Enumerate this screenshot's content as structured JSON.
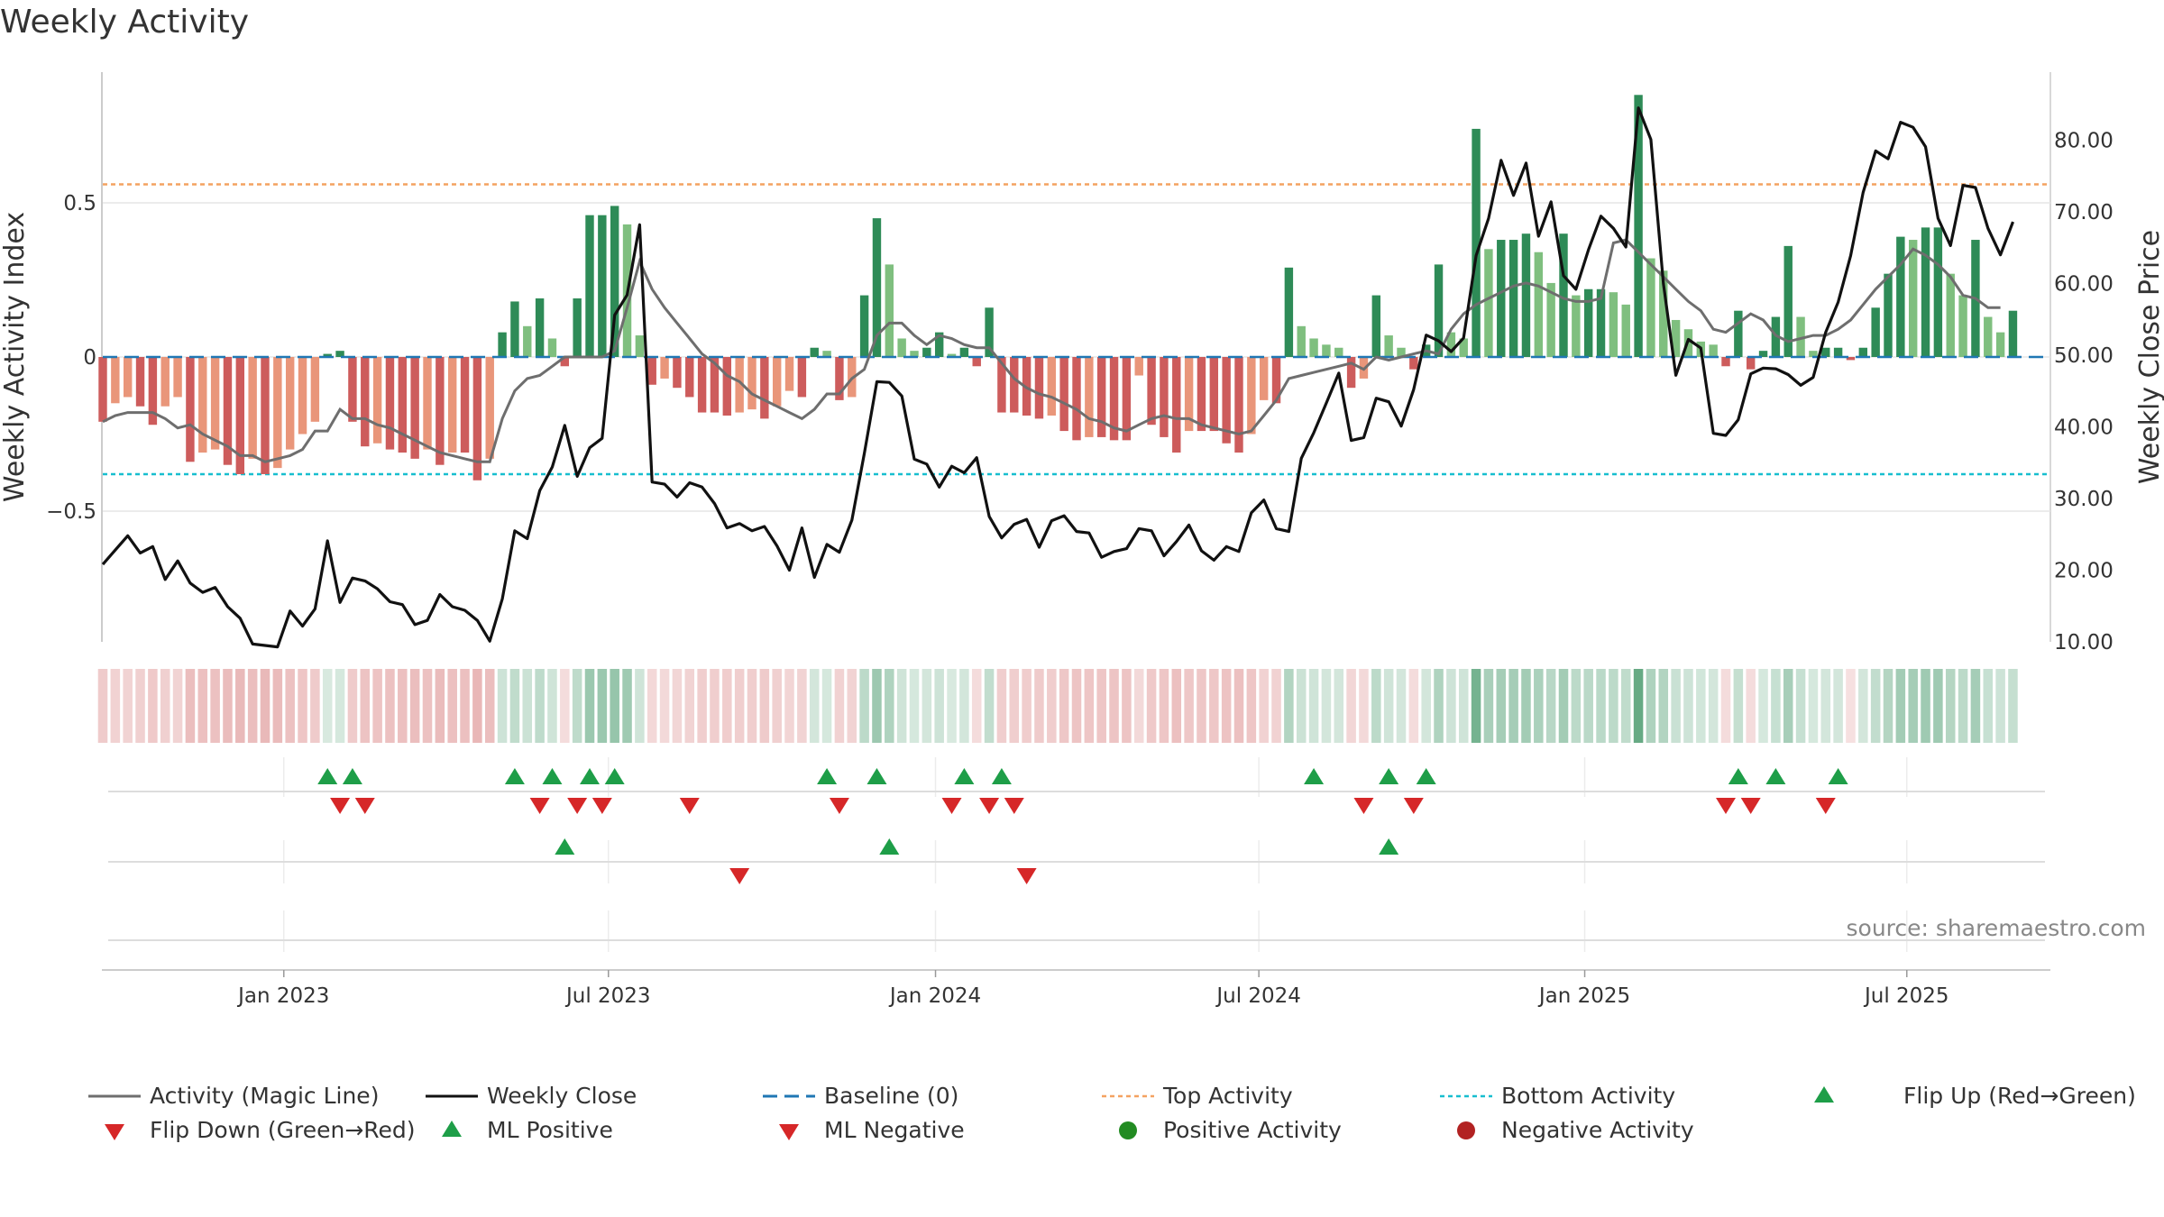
{
  "title": "Weekly Activity",
  "source": "source: sharemaestro.com",
  "colors": {
    "pos_strong": "#2e8b57",
    "pos_light": "#7fbf7f",
    "neg_strong": "#cd5c5c",
    "neg_light": "#e9967a",
    "magic_line": "#6e6e6e",
    "close_line": "#111111",
    "baseline": "#1f77b4",
    "top_line": "#f4a261",
    "bottom_line": "#17becf",
    "flip_up": "#1e9e48",
    "flip_down": "#d62728",
    "grid": "#e6e6e6"
  },
  "chart_data": {
    "type": "bar+line",
    "title": "Weekly Activity",
    "ylabel_left": "Weekly Activity Index",
    "ylabel_right": "Weekly Close Price",
    "left_axis": {
      "ylim": [
        -0.93,
        0.93
      ],
      "ticks": [
        0.5,
        0,
        -0.5
      ],
      "tick_labels": [
        "0.5",
        "0",
        "−0.5"
      ]
    },
    "right_axis": {
      "ylim": [
        7.5,
        87.5
      ],
      "ticks": [
        80,
        70,
        60,
        50,
        40,
        30,
        20,
        10
      ],
      "tick_labels": [
        "80.00",
        "70.00",
        "60.00",
        "50.00",
        "40.00",
        "30.00",
        "20.00",
        "10.00"
      ]
    },
    "x_range_weeks": [
      0,
      156
    ],
    "x_ticks": [
      {
        "label": "Jan 2023",
        "week": 14.5
      },
      {
        "label": "Jul 2023",
        "week": 40.5
      },
      {
        "label": "Jan 2024",
        "week": 66.7
      },
      {
        "label": "Jul 2024",
        "week": 92.6
      },
      {
        "label": "Jan 2025",
        "week": 118.7
      },
      {
        "label": "Jul 2025",
        "week": 144.5
      }
    ],
    "top_activity": 0.56,
    "bottom_activity": -0.38,
    "activity": [
      -0.21,
      -0.15,
      -0.13,
      -0.16,
      -0.22,
      -0.16,
      -0.13,
      -0.34,
      -0.31,
      -0.3,
      -0.35,
      -0.38,
      -0.33,
      -0.38,
      -0.36,
      -0.3,
      -0.25,
      -0.21,
      0.01,
      0.02,
      -0.21,
      -0.29,
      -0.28,
      -0.3,
      -0.31,
      -0.33,
      -0.3,
      -0.35,
      -0.31,
      -0.31,
      -0.4,
      -0.33,
      0.08,
      0.18,
      0.1,
      0.19,
      0.06,
      -0.03,
      0.19,
      0.46,
      0.46,
      0.49,
      0.43,
      0.07,
      -0.09,
      -0.07,
      -0.1,
      -0.13,
      -0.18,
      -0.18,
      -0.19,
      -0.18,
      -0.17,
      -0.2,
      -0.16,
      -0.11,
      -0.13,
      0.03,
      0.02,
      -0.14,
      -0.13,
      0.2,
      0.45,
      0.3,
      0.06,
      0.02,
      0.03,
      0.08,
      0.01,
      0.03,
      -0.03,
      0.16,
      -0.18,
      -0.18,
      -0.19,
      -0.2,
      -0.19,
      -0.24,
      -0.27,
      -0.26,
      -0.26,
      -0.27,
      -0.27,
      -0.06,
      -0.22,
      -0.26,
      -0.31,
      -0.24,
      -0.24,
      -0.24,
      -0.28,
      -0.31,
      -0.25,
      -0.14,
      -0.15,
      0.29,
      0.1,
      0.06,
      0.04,
      0.03,
      -0.1,
      -0.07,
      0.2,
      0.07,
      0.03,
      -0.04,
      0.04,
      0.3,
      0.08,
      0.06,
      0.74,
      0.35,
      0.38,
      0.38,
      0.4,
      0.34,
      0.24,
      0.4,
      0.2,
      0.22,
      0.22,
      0.21,
      0.17,
      0.85,
      0.32,
      0.28,
      0.12,
      0.09,
      0.05,
      0.04,
      -0.03,
      0.15,
      -0.04,
      0.02,
      0.13,
      0.36,
      0.13,
      0.02,
      0.03,
      0.03,
      -0.01,
      0.03,
      0.16,
      0.27,
      0.39,
      0.38,
      0.42,
      0.42,
      0.27,
      0.2,
      0.38,
      0.13,
      0.08,
      0.15
    ],
    "magic_line": [
      -0.21,
      -0.19,
      -0.18,
      -0.18,
      -0.18,
      -0.2,
      -0.23,
      -0.22,
      -0.25,
      -0.27,
      -0.29,
      -0.32,
      -0.32,
      -0.34,
      -0.33,
      -0.32,
      -0.3,
      -0.24,
      -0.24,
      -0.17,
      -0.2,
      -0.2,
      -0.22,
      -0.23,
      -0.25,
      -0.27,
      -0.29,
      -0.31,
      -0.32,
      -0.33,
      -0.34,
      -0.34,
      -0.2,
      -0.11,
      -0.07,
      -0.06,
      -0.03,
      0.0,
      0.0,
      0.0,
      0.0,
      0.02,
      0.16,
      0.31,
      0.22,
      0.16,
      0.11,
      0.06,
      0.01,
      -0.02,
      -0.06,
      -0.08,
      -0.12,
      -0.14,
      -0.16,
      -0.18,
      -0.2,
      -0.17,
      -0.12,
      -0.12,
      -0.07,
      -0.04,
      0.07,
      0.11,
      0.11,
      0.07,
      0.04,
      0.07,
      0.06,
      0.04,
      0.03,
      0.03,
      -0.02,
      -0.07,
      -0.1,
      -0.12,
      -0.13,
      -0.15,
      -0.17,
      -0.2,
      -0.21,
      -0.23,
      -0.24,
      -0.22,
      -0.2,
      -0.19,
      -0.2,
      -0.2,
      -0.22,
      -0.23,
      -0.24,
      -0.25,
      -0.24,
      -0.19,
      -0.14,
      -0.07,
      -0.06,
      -0.05,
      -0.04,
      -0.03,
      -0.02,
      -0.04,
      0.0,
      -0.01,
      0.0,
      0.01,
      0.02,
      0.01,
      0.09,
      0.14,
      0.17,
      0.19,
      0.21,
      0.23,
      0.24,
      0.23,
      0.21,
      0.19,
      0.18,
      0.18,
      0.19,
      0.37,
      0.38,
      0.34,
      0.3,
      0.26,
      0.22,
      0.18,
      0.15,
      0.09,
      0.08,
      0.11,
      0.14,
      0.12,
      0.07,
      0.05,
      0.06,
      0.07,
      0.07,
      0.09,
      0.12,
      0.17,
      0.22,
      0.26,
      0.3,
      0.35,
      0.33,
      0.3,
      0.26,
      0.2,
      0.19,
      0.16,
      0.16
    ],
    "weekly_close": [
      20.8,
      22.8,
      24.8,
      22.4,
      23.3,
      18.7,
      21.3,
      18.2,
      16.9,
      17.6,
      14.9,
      13.3,
      9.7,
      9.5,
      9.3,
      14.3,
      12.2,
      14.6,
      24.1,
      15.5,
      18.9,
      18.5,
      17.4,
      15.6,
      15.2,
      12.4,
      13.0,
      16.6,
      14.9,
      14.4,
      13.0,
      10.1,
      16.0,
      25.5,
      24.4,
      31.1,
      34.4,
      40.2,
      33.1,
      37.1,
      38.4,
      55.6,
      58.4,
      68.2,
      32.3,
      32.0,
      30.2,
      32.2,
      31.6,
      29.3,
      25.9,
      26.5,
      25.5,
      26.1,
      23.4,
      20.0,
      25.9,
      19.0,
      23.6,
      22.5,
      27.0,
      36.3,
      46.3,
      46.2,
      44.3,
      35.5,
      34.8,
      31.6,
      34.5,
      33.6,
      35.7,
      27.5,
      24.5,
      26.4,
      27.1,
      23.2,
      26.9,
      27.6,
      25.4,
      25.2,
      21.8,
      22.6,
      23.0,
      25.8,
      25.5,
      22.0,
      24.0,
      26.3,
      22.7,
      21.4,
      23.3,
      22.6,
      28.0,
      29.8,
      25.8,
      25.4,
      35.6,
      39.2,
      43.3,
      47.5,
      38.1,
      38.5,
      44.0,
      43.5,
      40.1,
      45.2,
      52.8,
      52.0,
      50.5,
      52.4,
      63.9,
      69.1,
      77.2,
      72.3,
      76.8,
      66.6,
      71.4,
      61.1,
      59.2,
      64.7,
      69.4,
      67.7,
      65.1,
      84.5,
      80.1,
      60.0,
      47.2,
      52.2,
      51.0,
      39.1,
      38.8,
      41.0,
      47.4,
      48.2,
      48.1,
      47.3,
      45.8,
      46.9,
      53.2,
      57.4,
      63.9,
      72.7,
      78.5,
      77.4,
      82.5,
      81.8,
      79.1,
      69.1,
      65.3,
      73.7,
      73.4,
      67.7,
      64.0,
      68.6
    ],
    "flip_up_weeks": [
      18,
      20,
      33,
      36,
      39,
      41,
      58,
      62,
      69,
      72,
      97,
      103,
      106,
      131,
      134,
      139
    ],
    "flip_down_weeks": [
      19,
      21,
      35,
      38,
      40,
      47,
      59,
      68,
      71,
      73,
      101,
      105,
      130,
      132,
      138
    ],
    "ml_positive_weeks": [
      37,
      63,
      103
    ],
    "ml_negative_weeks": [
      51,
      74
    ],
    "legend": [
      "Activity (Magic Line)",
      "Weekly Close",
      "Baseline (0)",
      "Top Activity",
      "Bottom Activity",
      "Flip Up (Red→Green)",
      "Flip Down (Green→Red)",
      "ML Positive",
      "ML Negative",
      "Positive Activity",
      "Negative Activity"
    ]
  }
}
